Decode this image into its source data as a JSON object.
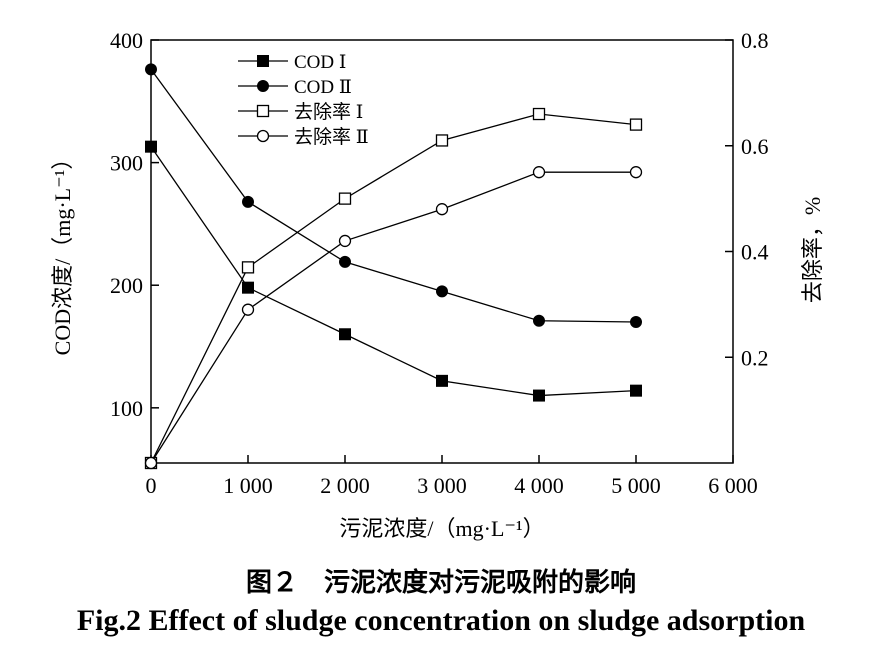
{
  "chart_data": {
    "type": "line",
    "x_label": "污泥浓度/（mg·L⁻¹）",
    "y_left_label": "COD浓度/（mg·L⁻¹）",
    "y_right_label": "去除率，%",
    "x_range": [
      0,
      6000
    ],
    "y_left_range": [
      55,
      400
    ],
    "y_right_range": [
      0,
      0.8
    ],
    "x_ticks": [
      0,
      1000,
      2000,
      3000,
      4000,
      5000,
      6000
    ],
    "x_tick_labels": [
      "0",
      "1 000",
      "2 000",
      "3 000",
      "4 000",
      "5 000",
      "6 000"
    ],
    "y_left_ticks": [
      100,
      200,
      300,
      400
    ],
    "y_left_tick_labels": [
      "100",
      "200",
      "300",
      "400"
    ],
    "y_right_ticks": [
      0.2,
      0.4,
      0.6,
      0.8
    ],
    "y_right_tick_labels": [
      "0.2",
      "0.4",
      "0.6",
      "0.8"
    ],
    "legend_position": "top-left",
    "grid": false,
    "series": [
      {
        "name": "COD Ⅰ",
        "axis": "left",
        "marker": "filled-square",
        "x": [
          0,
          1000,
          2000,
          3000,
          4000,
          5000
        ],
        "y": [
          313,
          198,
          160,
          122,
          110,
          114
        ]
      },
      {
        "name": "COD Ⅱ",
        "axis": "left",
        "marker": "filled-circle",
        "x": [
          0,
          1000,
          2000,
          3000,
          4000,
          5000
        ],
        "y": [
          376,
          268,
          219,
          195,
          171,
          170
        ]
      },
      {
        "name": "去除率 Ⅰ",
        "axis": "right",
        "marker": "open-square",
        "x": [
          0,
          1000,
          2000,
          3000,
          4000,
          5000
        ],
        "y": [
          0.0,
          0.37,
          0.5,
          0.61,
          0.66,
          0.64
        ]
      },
      {
        "name": "去除率 Ⅱ",
        "axis": "right",
        "marker": "open-circle",
        "x": [
          0,
          1000,
          2000,
          3000,
          4000,
          5000
        ],
        "y": [
          0.0,
          0.29,
          0.42,
          0.48,
          0.55,
          0.55
        ]
      }
    ]
  },
  "caption": {
    "cn": "图２　污泥浓度对污泥吸附的影响",
    "en": "Fig.2 Effect of sludge concentration on sludge adsorption"
  }
}
